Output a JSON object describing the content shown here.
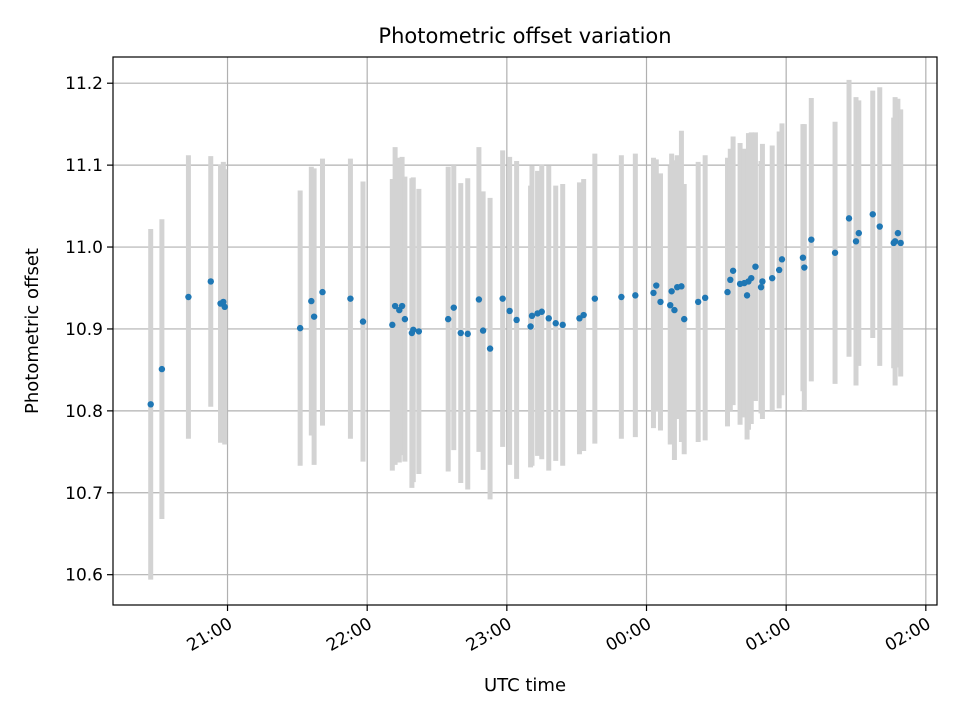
{
  "chart_data": {
    "type": "scatter",
    "title": "Photometric offset variation",
    "xlabel": "UTC time",
    "ylabel": "Photometric offset",
    "x_tick_labels": [
      "21:00",
      "22:00",
      "23:00",
      "00:00",
      "01:00",
      "02:00"
    ],
    "x_tick_hours": [
      21,
      22,
      23,
      24,
      25,
      26
    ],
    "y_ticks": [
      10.6,
      10.7,
      10.8,
      10.9,
      11.0,
      11.1,
      11.2
    ],
    "y_tick_labels": [
      "10.6",
      "10.7",
      "10.8",
      "10.9",
      "11.0",
      "11.1",
      "11.2"
    ],
    "xlim_hours": [
      20.18,
      26.08
    ],
    "ylim": [
      10.563,
      11.232
    ],
    "grid": true,
    "colors": {
      "points": "#1f77b4",
      "errorbars": "#d3d3d3",
      "grid": "#b0b0b0"
    },
    "series": [
      {
        "x_hours": [
          20.45,
          20.53,
          20.72,
          20.88,
          20.95,
          20.97,
          20.98,
          21.52,
          21.6,
          21.62,
          21.68,
          21.88,
          21.97,
          22.18,
          22.2,
          22.23,
          22.25,
          22.27,
          22.32,
          22.33,
          22.37,
          22.58,
          22.62,
          22.67,
          22.72,
          22.8,
          22.83,
          22.88,
          22.97,
          23.02,
          23.07,
          23.17,
          23.18,
          23.22,
          23.25,
          23.3,
          23.35,
          23.4,
          23.52,
          23.55,
          23.63,
          23.82,
          23.92,
          24.05,
          24.07,
          24.1,
          24.17,
          24.18,
          24.2,
          24.22,
          24.25,
          24.27,
          24.37,
          24.42,
          24.58,
          24.6,
          24.62,
          24.67,
          24.7,
          24.72,
          24.73,
          24.75,
          24.78,
          24.82,
          24.83,
          24.9,
          24.95,
          24.97,
          25.12,
          25.13,
          25.18,
          25.35,
          25.45,
          25.5,
          25.52,
          25.62,
          25.67,
          25.77,
          25.78,
          25.8,
          25.82
        ],
        "y": [
          10.808,
          10.851,
          10.939,
          10.958,
          10.931,
          10.933,
          10.927,
          10.901,
          10.934,
          10.915,
          10.945,
          10.937,
          10.909,
          10.905,
          10.928,
          10.923,
          10.928,
          10.912,
          10.895,
          10.899,
          10.897,
          10.912,
          10.926,
          10.895,
          10.894,
          10.936,
          10.898,
          10.876,
          10.937,
          10.922,
          10.911,
          10.903,
          10.916,
          10.919,
          10.921,
          10.913,
          10.907,
          10.905,
          10.913,
          10.917,
          10.937,
          10.939,
          10.941,
          10.944,
          10.953,
          10.933,
          10.929,
          10.946,
          10.923,
          10.951,
          10.952,
          10.912,
          10.933,
          10.938,
          10.945,
          10.96,
          10.971,
          10.955,
          10.956,
          10.941,
          10.958,
          10.962,
          10.976,
          10.951,
          10.958,
          10.962,
          10.972,
          10.985,
          10.987,
          10.975,
          11.009,
          10.993,
          11.035,
          11.007,
          11.017,
          11.04,
          11.025,
          11.005,
          11.007,
          11.017,
          11.005
        ],
        "err": [
          0.214,
          0.183,
          0.173,
          0.153,
          0.17,
          0.171,
          0.168,
          0.168,
          0.164,
          0.181,
          0.163,
          0.171,
          0.171,
          0.178,
          0.194,
          0.186,
          0.182,
          0.174,
          0.189,
          0.186,
          0.174,
          0.186,
          0.174,
          0.183,
          0.19,
          0.186,
          0.17,
          0.184,
          0.181,
          0.188,
          0.194,
          0.172,
          0.183,
          0.174,
          0.18,
          0.186,
          0.168,
          0.172,
          0.166,
          0.166,
          0.177,
          0.173,
          0.173,
          0.165,
          0.154,
          0.157,
          0.17,
          0.168,
          0.183,
          0.161,
          0.19,
          0.165,
          0.171,
          0.174,
          0.164,
          0.16,
          0.164,
          0.172,
          0.164,
          0.176,
          0.181,
          0.178,
          0.164,
          0.154,
          0.168,
          0.162,
          0.169,
          0.166,
          0.163,
          0.175,
          0.173,
          0.16,
          0.169,
          0.176,
          0.162,
          0.151,
          0.17,
          0.153,
          0.176,
          0.164,
          0.163
        ]
      }
    ]
  }
}
